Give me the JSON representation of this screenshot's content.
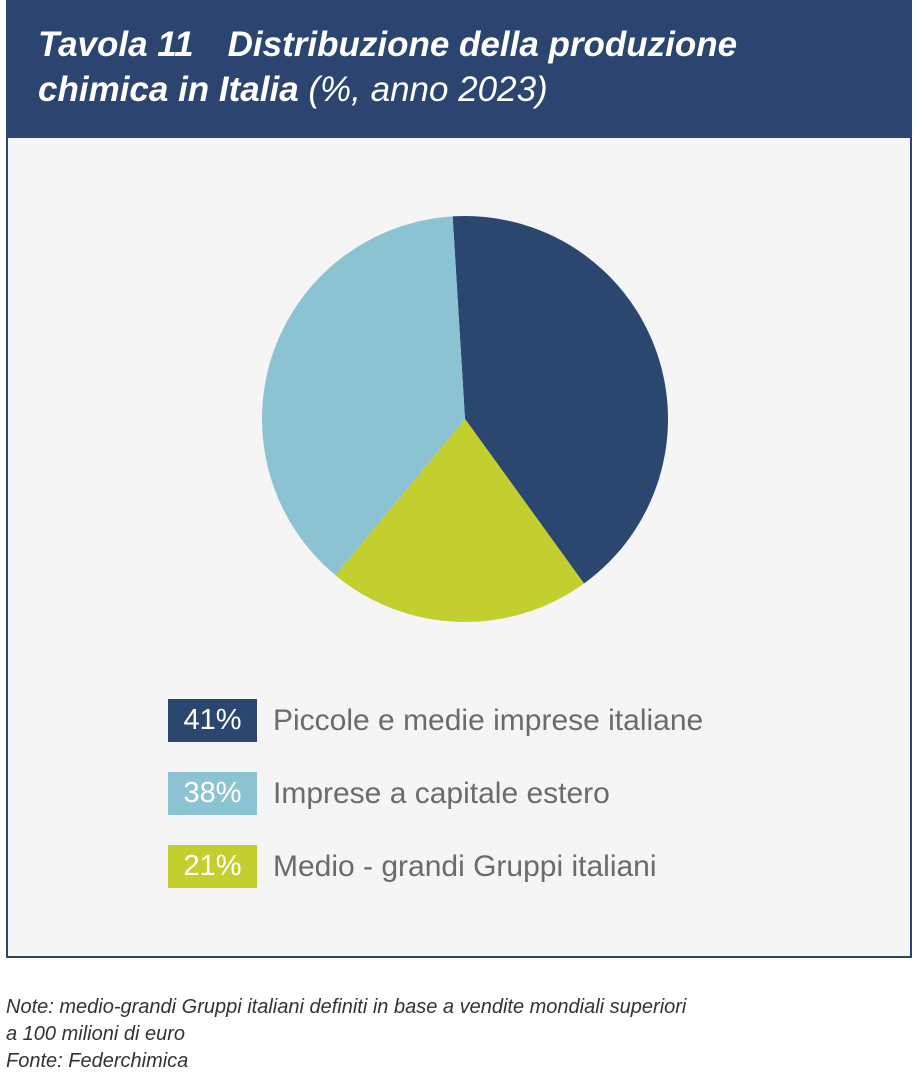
{
  "header": {
    "table_label": "Tavola 11",
    "title_part1": "Distribuzione della produzione",
    "title_part2": "chimica in Italia",
    "title_unit": "(%, anno 2023)"
  },
  "chart_data": {
    "type": "pie",
    "title": "Distribuzione della produzione chimica in Italia",
    "slices": [
      {
        "label": "Piccole e medie imprese italiane",
        "value": 41,
        "display": "41%",
        "color": "#2b4770"
      },
      {
        "label": "Medio - grandi Gruppi italiani",
        "value": 21,
        "display": "21%",
        "color": "#c3cf2e"
      },
      {
        "label": "Imprese a capitale estero",
        "value": 38,
        "display": "38%",
        "color": "#8cc3d3"
      }
    ],
    "legend_order": [
      0,
      2,
      1
    ]
  },
  "notes": {
    "line1": "Note: medio-grandi Gruppi italiani definiti in base a vendite mondiali superiori",
    "line2": "a 100 milioni di euro",
    "source": "Fonte: Federchimica"
  }
}
